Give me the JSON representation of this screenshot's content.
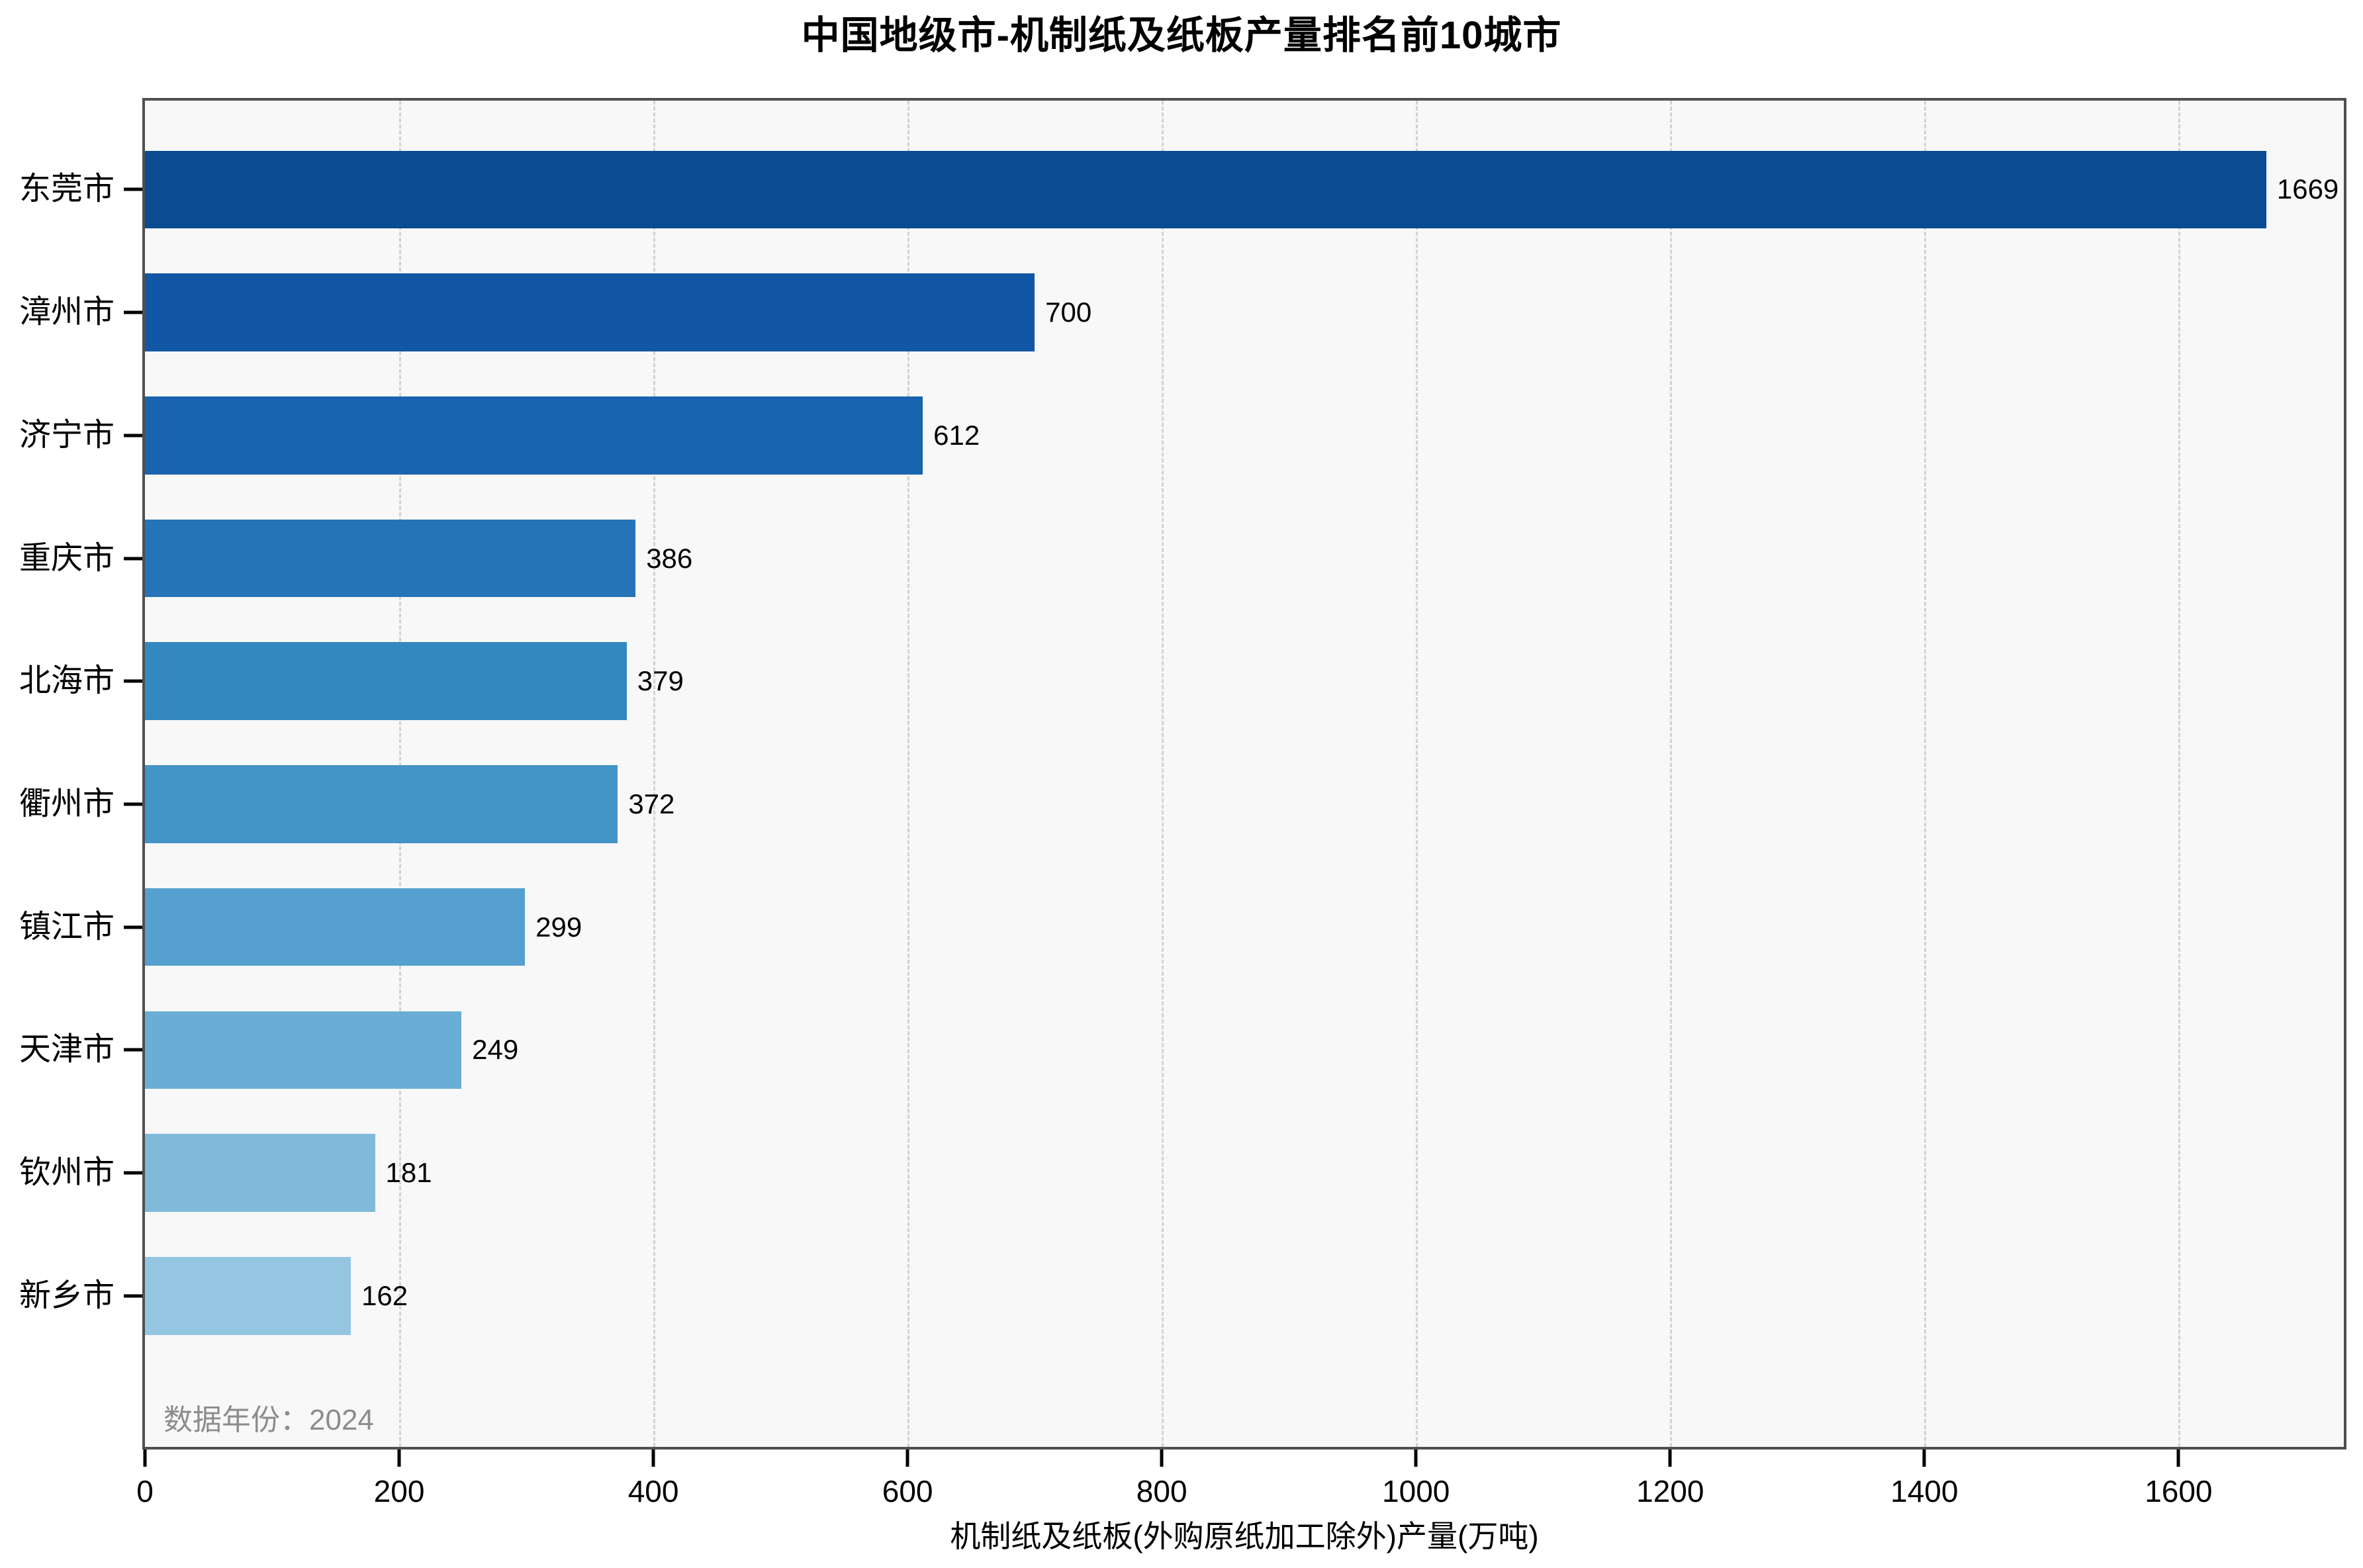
{
  "title": "中国地级市-机制纸及纸板产量排名前10城市",
  "footnote": "数据年份：2024",
  "chart_data": {
    "type": "bar",
    "orientation": "horizontal",
    "title": "中国地级市-机制纸及纸板产量排名前10城市",
    "categories": [
      "东莞市",
      "漳州市",
      "济宁市",
      "重庆市",
      "北海市",
      "衢州市",
      "镇江市",
      "天津市",
      "钦州市",
      "新乡市"
    ],
    "values": [
      1669,
      700,
      612,
      386,
      379,
      372,
      299,
      249,
      181,
      162
    ],
    "bar_colors": [
      "#0b4b92",
      "#1257a5",
      "#1a63ae",
      "#2474b7",
      "#3488c0",
      "#4394c7",
      "#55a0ce",
      "#6aaed6",
      "#7fbada",
      "#94c6e2"
    ],
    "xlabel": "机制纸及纸板(外购原纸加工除外)产量(万吨)",
    "ylabel": "",
    "xlim": [
      0,
      1730
    ],
    "xticks": [
      0,
      200,
      400,
      600,
      800,
      1000,
      1200,
      1400,
      1600
    ],
    "grid": "vertical-dashed",
    "legend": "none",
    "annotation": "数据年份：2024",
    "colors": {
      "plot_background": "#f8f8f8",
      "figure_background": "#ffffff",
      "grid_color": "#d2d2d2",
      "spine_color": "#4f4f4f",
      "value_label_color": "#000000",
      "annotation_color": "#8c8c8c"
    }
  }
}
